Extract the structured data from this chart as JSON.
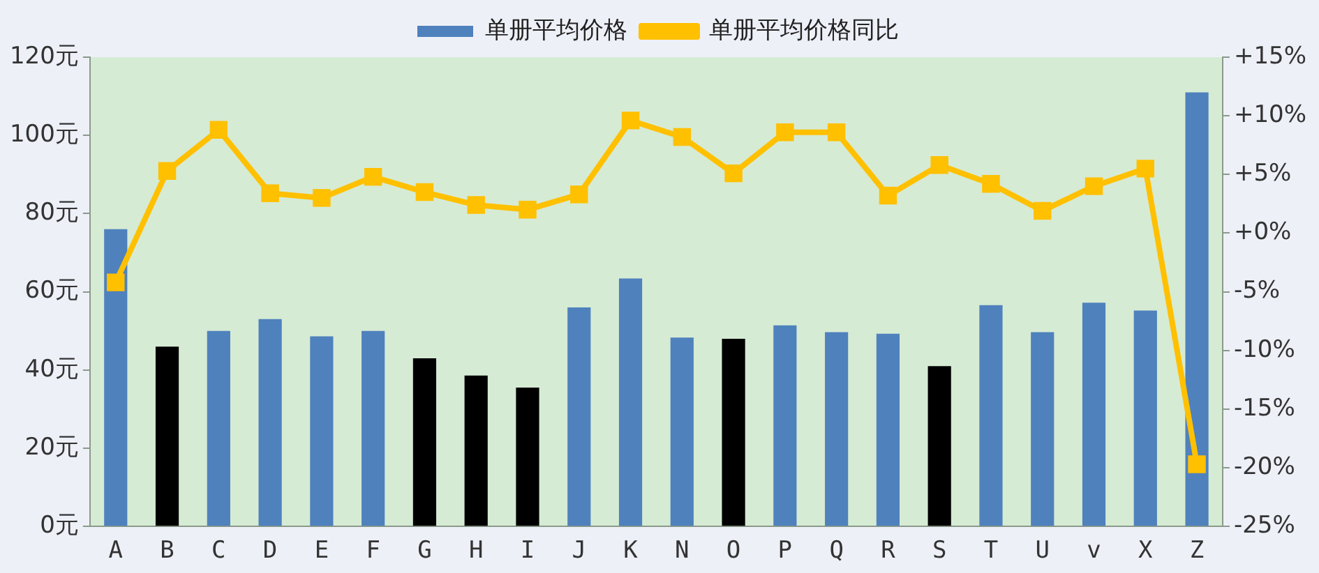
{
  "chart_data": {
    "type": "bar",
    "categories": [
      "A",
      "B",
      "C",
      "D",
      "E",
      "F",
      "G",
      "H",
      "I",
      "J",
      "K",
      "N",
      "O",
      "P",
      "Q",
      "R",
      "S",
      "T",
      "U",
      "v",
      "X",
      "Z"
    ],
    "series": [
      {
        "name": "单册平均价格",
        "color": "#4f81bd",
        "colors": [
          "#4f81bd",
          "#000000",
          "#4f81bd",
          "#4f81bd",
          "#4f81bd",
          "#4f81bd",
          "#000000",
          "#000000",
          "#000000",
          "#4f81bd",
          "#4f81bd",
          "#4f81bd",
          "#000000",
          "#4f81bd",
          "#4f81bd",
          "#4f81bd",
          "#000000",
          "#4f81bd",
          "#4f81bd",
          "#4f81bd",
          "#4f81bd",
          "#4f81bd"
        ],
        "values": [
          76,
          46,
          50,
          53,
          48.6,
          50,
          43,
          38.6,
          35.5,
          56,
          63.4,
          48.3,
          48,
          51.4,
          49.7,
          49.3,
          41,
          56.6,
          49.7,
          57.2,
          55.2,
          111
        ]
      },
      {
        "name": "单册平均价格同比",
        "type": "line",
        "axis": "y2",
        "color": "#ffc000",
        "values": [
          -4.2,
          5.3,
          8.8,
          3.4,
          3,
          4.8,
          3.5,
          2.4,
          2,
          3.3,
          9.6,
          8.2,
          5.1,
          8.6,
          8.6,
          3.2,
          5.8,
          4.2,
          1.9,
          4,
          5.5,
          -19.7
        ]
      }
    ],
    "ylim": [
      0,
      120
    ],
    "yticks": [
      {
        "value": 0,
        "label": "0元"
      },
      {
        "value": 20,
        "label": "20元"
      },
      {
        "value": 40,
        "label": "40元"
      },
      {
        "value": 60,
        "label": "60元"
      },
      {
        "value": 80,
        "label": "80元"
      },
      {
        "value": 100,
        "label": "100元"
      },
      {
        "value": 120,
        "label": "120元"
      }
    ],
    "y2lim": [
      -25,
      15
    ],
    "y2ticks": [
      {
        "value": -25,
        "label": "-25%"
      },
      {
        "value": -20,
        "label": "-20%"
      },
      {
        "value": -15,
        "label": "-15%"
      },
      {
        "value": -10,
        "label": "-10%"
      },
      {
        "value": -5,
        "label": "-5%"
      },
      {
        "value": 0,
        "label": "+0%"
      },
      {
        "value": 5,
        "label": "+5%"
      },
      {
        "value": 10,
        "label": "+10%"
      },
      {
        "value": 15,
        "label": "+15%"
      }
    ],
    "grid": false,
    "legend": "top",
    "marker": "square",
    "line_style": "solid"
  }
}
